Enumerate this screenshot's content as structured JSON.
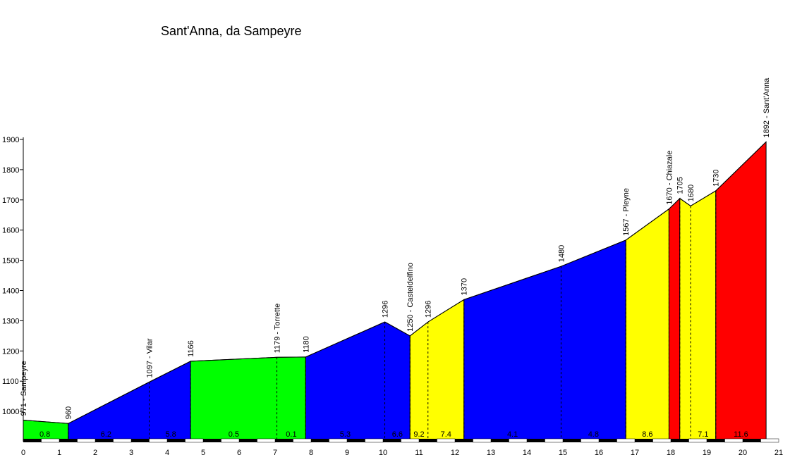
{
  "chart_data": {
    "type": "area",
    "title": "Sant'Anna, da Sampeyre",
    "xlabel": "",
    "ylabel": "",
    "xlim": [
      0,
      21
    ],
    "ylim": [
      900,
      1900
    ],
    "x_ticks": [
      0,
      1,
      2,
      3,
      4,
      5,
      6,
      7,
      8,
      9,
      10,
      11,
      12,
      13,
      14,
      15,
      16,
      17,
      18,
      19,
      20,
      21
    ],
    "y_ticks": [
      1000,
      1100,
      1200,
      1300,
      1400,
      1500,
      1600,
      1700,
      1800,
      1900
    ],
    "y_tick_labels": [
      "1000",
      "1100",
      "1200",
      "1300",
      "1400",
      "1500",
      "1600",
      "1700",
      "1800",
      "1900"
    ],
    "grid": false,
    "points": [
      {
        "x": 0.0,
        "y": 971,
        "label": "971 - Sampeyre"
      },
      {
        "x": 1.25,
        "y": 960,
        "label": "960"
      },
      {
        "x": 3.5,
        "y": 1097,
        "label": "1097 - Vilar"
      },
      {
        "x": 4.65,
        "y": 1166,
        "label": "1166"
      },
      {
        "x": 7.05,
        "y": 1179,
        "label": "1179 - Torrette"
      },
      {
        "x": 7.85,
        "y": 1180,
        "label": "1180"
      },
      {
        "x": 10.05,
        "y": 1296,
        "label": "1296"
      },
      {
        "x": 10.75,
        "y": 1250,
        "label": "1250 - Casteldelfino"
      },
      {
        "x": 11.25,
        "y": 1296,
        "label": "1296"
      },
      {
        "x": 12.25,
        "y": 1370,
        "label": "1370"
      },
      {
        "x": 14.95,
        "y": 1480,
        "label": "1480"
      },
      {
        "x": 16.75,
        "y": 1567,
        "label": "1567 - Pleyne"
      },
      {
        "x": 17.95,
        "y": 1670,
        "label": "1670 - Chiazale"
      },
      {
        "x": 18.25,
        "y": 1705,
        "label": "1705"
      },
      {
        "x": 18.55,
        "y": 1680,
        "label": "1680"
      },
      {
        "x": 19.25,
        "y": 1730,
        "label": "1730"
      },
      {
        "x": 20.65,
        "y": 1892,
        "label": "1892 - Sant'Anna"
      }
    ],
    "segments": [
      {
        "from": 0.0,
        "to": 1.25,
        "color": "#00ff00",
        "gradient": "0.8"
      },
      {
        "from": 1.25,
        "to": 4.65,
        "color": "#0000ff",
        "gradient": "6.2"
      },
      {
        "from": 4.65,
        "to": 7.85,
        "color": "#00ff00",
        "gradient": "0.5"
      },
      {
        "from": 7.85,
        "to": 10.75,
        "color": "#0000ff",
        "gradient": "5.3"
      },
      {
        "from": 10.75,
        "to": 12.25,
        "color": "#ffff00",
        "gradient": "7.4"
      },
      {
        "from": 12.25,
        "to": 16.75,
        "color": "#0000ff",
        "gradient": "4.8"
      },
      {
        "from": 16.75,
        "to": 17.95,
        "color": "#ffff00",
        "gradient": "8.6"
      },
      {
        "from": 17.95,
        "to": 18.25,
        "color": "#ff0000",
        "gradient": ""
      },
      {
        "from": 18.25,
        "to": 19.25,
        "color": "#ffff00",
        "gradient": "7.1"
      },
      {
        "from": 19.25,
        "to": 20.65,
        "color": "#ff0000",
        "gradient": "11.6"
      }
    ],
    "gradient_labels": [
      {
        "x": 0.6,
        "text": "0.8"
      },
      {
        "x": 2.3,
        "text": "6.2"
      },
      {
        "x": 4.1,
        "text": "5.8"
      },
      {
        "x": 5.85,
        "text": "0.5"
      },
      {
        "x": 7.45,
        "text": "0.1"
      },
      {
        "x": 8.95,
        "text": "5.3"
      },
      {
        "x": 10.4,
        "text": "6.6"
      },
      {
        "x": 11.0,
        "text": "9.2"
      },
      {
        "x": 11.75,
        "text": "7.4"
      },
      {
        "x": 13.6,
        "text": "4.1"
      },
      {
        "x": 15.85,
        "text": "4.8"
      },
      {
        "x": 17.35,
        "text": "8.6"
      },
      {
        "x": 18.9,
        "text": "7.1"
      },
      {
        "x": 19.95,
        "text": "11.6"
      }
    ]
  }
}
